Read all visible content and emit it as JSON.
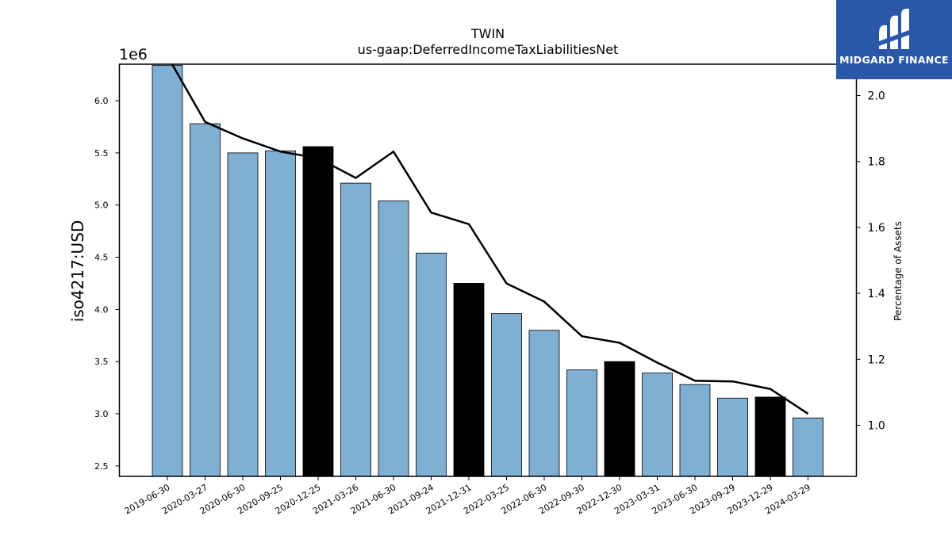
{
  "chart_data": {
    "type": "bar",
    "title": "TWIN",
    "subtitle": "us-gaap:DeferredIncomeTaxLiabilitiesNet",
    "ylabel": "iso4217:USD",
    "y_offset_label": "1e6",
    "y2label": "Percentage of Assets",
    "categories": [
      "2019-06-30",
      "2020-03-27",
      "2020-06-30",
      "2020-09-25",
      "2020-12-25",
      "2021-03-26",
      "2021-06-30",
      "2021-09-24",
      "2021-12-31",
      "2022-03-25",
      "2022-06-30",
      "2022-09-30",
      "2022-12-30",
      "2023-03-31",
      "2023-06-30",
      "2023-09-29",
      "2023-12-29",
      "2024-03-29"
    ],
    "series": [
      {
        "values": [
          6.34,
          5.78,
          5.5,
          5.52,
          5.56,
          5.21,
          5.04,
          4.54,
          4.25,
          3.96,
          3.8,
          3.42,
          3.5,
          3.39,
          3.28,
          3.15,
          3.16,
          2.96
        ],
        "highlight": [
          false,
          false,
          false,
          false,
          true,
          false,
          false,
          false,
          true,
          false,
          false,
          false,
          true,
          false,
          false,
          false,
          true,
          false
        ]
      },
      {
        "axis": "right",
        "values": [
          2.12,
          1.92,
          1.87,
          1.83,
          1.81,
          1.75,
          1.83,
          1.645,
          1.61,
          1.43,
          1.375,
          1.27,
          1.25,
          1.19,
          1.135,
          1.133,
          1.11,
          1.035
        ]
      }
    ],
    "ylim": [
      2.4,
      6.35
    ],
    "y_ticks": [
      "2.5",
      "3.0",
      "3.5",
      "4.0",
      "4.5",
      "5.0",
      "5.5",
      "6.0"
    ],
    "y2lim": [
      0.845,
      2.095
    ],
    "y2_ticks": [
      "1.0",
      "1.2",
      "1.4",
      "1.6",
      "1.8",
      "2.0"
    ],
    "colors": {
      "bar": "#7fafd3",
      "highlight_bar": "#000000",
      "line": "#000000"
    },
    "grid": false
  },
  "logo": {
    "text": "MIDGARD FINANCE"
  }
}
